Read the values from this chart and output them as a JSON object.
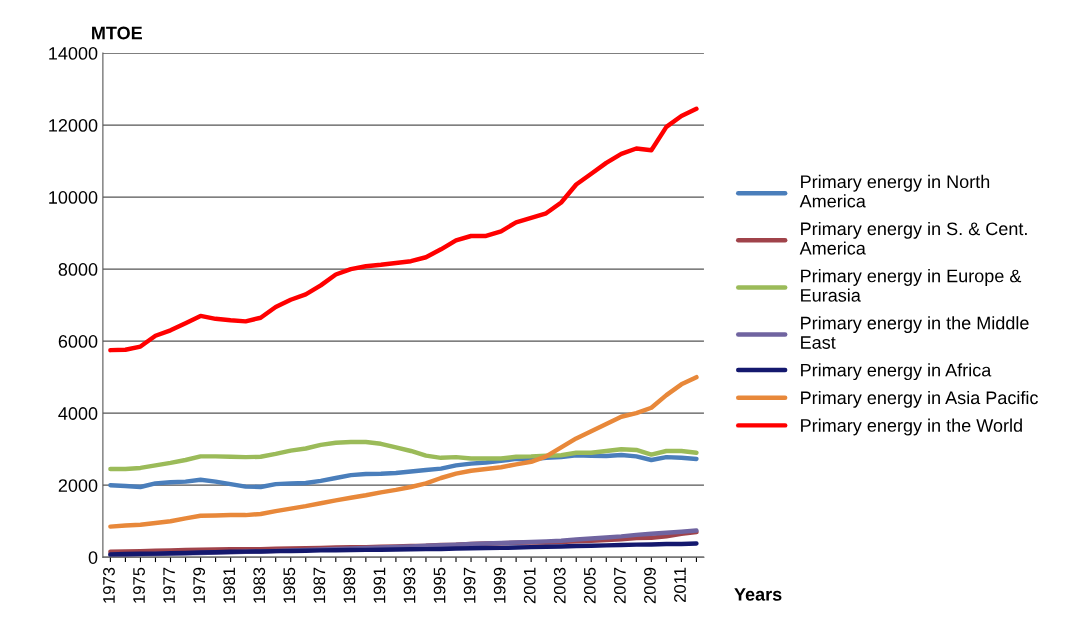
{
  "chart_data": {
    "type": "line",
    "ylabel": "MTOE",
    "xlabel": "Years",
    "categories": [
      "1973",
      null,
      "1975",
      null,
      "1977",
      null,
      "1979",
      null,
      "1981",
      null,
      "1983",
      null,
      "1985",
      null,
      "1987",
      null,
      "1989",
      null,
      "1991",
      null,
      "1993",
      null,
      "1995",
      null,
      "1997",
      null,
      "1999",
      null,
      "2001",
      null,
      "2003",
      null,
      "2005",
      null,
      "2007",
      null,
      "2009",
      null,
      "2011",
      null
    ],
    "ylim": [
      0,
      14000
    ],
    "yticks": [
      0,
      2000,
      4000,
      6000,
      8000,
      10000,
      12000,
      14000
    ],
    "grid": "y",
    "legend": "right",
    "line_style": "solid",
    "marker": "none",
    "series": [
      {
        "name": "Primary energy in North America",
        "color": "#4a7ebb",
        "values": [
          2000,
          1980,
          1950,
          2050,
          2080,
          2100,
          2150,
          2100,
          2030,
          1960,
          1950,
          2030,
          2050,
          2060,
          2120,
          2200,
          2280,
          2310,
          2320,
          2340,
          2380,
          2420,
          2460,
          2550,
          2600,
          2630,
          2680,
          2730,
          2720,
          2760,
          2780,
          2830,
          2820,
          2810,
          2840,
          2800,
          2700,
          2780,
          2760,
          2730
        ]
      },
      {
        "name": "Primary energy in S. & Cent. America",
        "color": "#a0434a",
        "values": [
          150,
          160,
          170,
          180,
          190,
          200,
          210,
          215,
          220,
          220,
          225,
          235,
          240,
          250,
          260,
          270,
          275,
          280,
          290,
          300,
          310,
          320,
          340,
          350,
          370,
          380,
          390,
          400,
          410,
          410,
          420,
          440,
          460,
          480,
          500,
          530,
          540,
          580,
          650,
          700
        ]
      },
      {
        "name": "Primary energy in Europe & Eurasia",
        "color": "#9bbb59",
        "values": [
          2450,
          2450,
          2480,
          2550,
          2620,
          2700,
          2800,
          2800,
          2790,
          2780,
          2790,
          2870,
          2960,
          3020,
          3120,
          3180,
          3200,
          3200,
          3150,
          3050,
          2950,
          2820,
          2760,
          2780,
          2740,
          2740,
          2740,
          2790,
          2800,
          2820,
          2830,
          2900,
          2900,
          2950,
          3000,
          2980,
          2850,
          2950,
          2950,
          2900
        ]
      },
      {
        "name": "Primary energy in the Middle East",
        "color": "#7064a0",
        "values": [
          60,
          70,
          80,
          90,
          100,
          110,
          120,
          130,
          140,
          150,
          160,
          175,
          190,
          200,
          215,
          230,
          245,
          255,
          270,
          285,
          300,
          320,
          335,
          350,
          365,
          380,
          395,
          410,
          425,
          440,
          460,
          490,
          520,
          550,
          580,
          620,
          650,
          680,
          710,
          740
        ]
      },
      {
        "name": "Primary energy in Africa",
        "color": "#14186e",
        "values": [
          80,
          90,
          95,
          100,
          110,
          120,
          130,
          140,
          150,
          155,
          160,
          170,
          175,
          180,
          190,
          195,
          200,
          205,
          210,
          215,
          220,
          225,
          230,
          240,
          250,
          255,
          260,
          270,
          280,
          290,
          300,
          310,
          320,
          330,
          340,
          350,
          355,
          365,
          370,
          380
        ]
      },
      {
        "name": "Primary energy in Asia Pacific",
        "color": "#e8883a",
        "values": [
          850,
          880,
          900,
          950,
          1000,
          1080,
          1150,
          1160,
          1170,
          1170,
          1200,
          1280,
          1350,
          1420,
          1500,
          1580,
          1650,
          1720,
          1800,
          1870,
          1950,
          2050,
          2200,
          2320,
          2400,
          2450,
          2500,
          2580,
          2650,
          2800,
          3050,
          3300,
          3500,
          3700,
          3900,
          4000,
          4150,
          4500,
          4800,
          5000
        ]
      },
      {
        "name": "Primary energy in the World",
        "color": "#ff0000",
        "values": [
          5750,
          5760,
          5850,
          6150,
          6300,
          6500,
          6700,
          6620,
          6580,
          6550,
          6650,
          6950,
          7150,
          7300,
          7550,
          7850,
          8000,
          8080,
          8120,
          8170,
          8220,
          8330,
          8550,
          8800,
          8920,
          8920,
          9050,
          9300,
          9420,
          9550,
          9850,
          10350,
          10650,
          10950,
          11200,
          11350,
          11300,
          11950,
          12250,
          12450
        ]
      }
    ]
  }
}
